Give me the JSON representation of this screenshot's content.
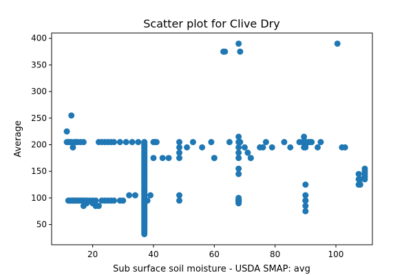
{
  "chart_data": {
    "type": "scatter",
    "title": "Scatter plot for Clive Dry",
    "xlabel": "Sub surface soil moisture - USDA SMAP: avg",
    "ylabel": "Average",
    "xlim": [
      6.5,
      112
    ],
    "ylim": [
      12,
      410
    ],
    "xticks": [
      20,
      40,
      60,
      80,
      100
    ],
    "yticks": [
      50,
      100,
      150,
      200,
      250,
      300,
      350,
      400
    ],
    "grid": false,
    "legend": "none",
    "marker_color": "#1f77b4",
    "series": [
      {
        "x": [
          11.5,
          11.5,
          12,
          12.5,
          13,
          13.5,
          14,
          14.5,
          15,
          16,
          17,
          13,
          13.5,
          22,
          23,
          24,
          25,
          26,
          27,
          29,
          31,
          33,
          35,
          37,
          40.5,
          12,
          12.5,
          13,
          13.5,
          14,
          14.5,
          15,
          15.5,
          16,
          16.5,
          17,
          17.5,
          18,
          19,
          20,
          21,
          22,
          23,
          24,
          25,
          26,
          27,
          29,
          30,
          32,
          34,
          38,
          39,
          40,
          17,
          18,
          20,
          21,
          13.5,
          40,
          41,
          43,
          45,
          48.5,
          48.5,
          48.5,
          48.5,
          48.5,
          48.5,
          51,
          53,
          56,
          59,
          60,
          60,
          63,
          63.5,
          65,
          68,
          68,
          68,
          68,
          68,
          68,
          68,
          68,
          68,
          68,
          68,
          68,
          68,
          68,
          68,
          68,
          68.5,
          68.5,
          70,
          71,
          72,
          72,
          75,
          76,
          77,
          79,
          83,
          85,
          88,
          89,
          89.5,
          89.5,
          90,
          90,
          90,
          90,
          90,
          90,
          90,
          90,
          90,
          90,
          90,
          90,
          90,
          91,
          91.5,
          92,
          94,
          95,
          100.5,
          102,
          103,
          107.5,
          107.5,
          107.5,
          108,
          108,
          109.5,
          109.5,
          109.5,
          109.5,
          109.5
        ],
        "y": [
          225,
          205,
          205,
          205,
          205,
          195,
          205,
          205,
          205,
          205,
          205,
          255,
          195,
          205,
          205,
          205,
          205,
          205,
          205,
          205,
          205,
          205,
          205,
          205,
          205,
          95,
          95,
          95,
          95,
          95,
          95,
          95,
          95,
          95,
          95,
          95,
          95,
          95,
          95,
          95,
          85,
          85,
          95,
          95,
          95,
          95,
          95,
          95,
          95,
          105,
          105,
          95,
          105,
          175,
          85,
          90,
          90,
          95,
          95,
          205,
          205,
          175,
          175,
          205,
          195,
          185,
          105,
          95,
          175,
          195,
          205,
          195,
          205,
          175,
          175,
          375,
          375,
          205,
          215,
          205,
          195,
          185,
          175,
          155,
          145,
          95,
          95,
          95,
          95,
          95,
          95,
          95,
          95,
          390,
          375,
          205,
          195,
          185,
          175,
          175,
          195,
          195,
          205,
          195,
          205,
          195,
          205,
          205,
          195,
          215,
          205,
          200,
          125,
          105,
          95,
          85,
          75,
          95,
          95,
          205,
          205,
          195,
          205,
          205,
          205,
          205,
          195,
          205,
          390,
          195,
          195,
          145,
          135,
          125,
          135,
          125,
          155,
          150,
          145,
          140,
          135
        ],
        "columns": [
          {
            "x": 37,
            "y_range": [
              32,
              205
            ]
          },
          {
            "x": 68,
            "y_range": [
              90,
              100
            ]
          }
        ]
      }
    ]
  }
}
